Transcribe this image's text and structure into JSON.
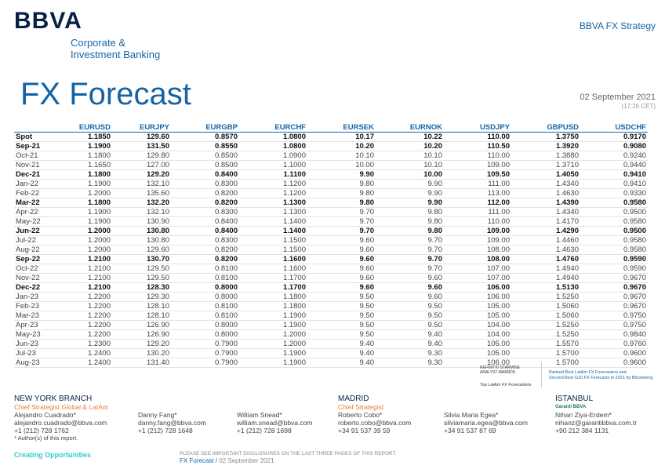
{
  "header": {
    "logo": "BBVA",
    "tagline": [
      "Corporate &",
      "Investment Banking"
    ],
    "section": "BBVA FX Strategy"
  },
  "title": "FX Forecast",
  "date": "02 September 2021",
  "time": "(17:26 CET)",
  "table": {
    "header": [
      "",
      "EURUSD",
      "EURJPY",
      "EURGBP",
      "EURCHF",
      "EURSEK",
      "EURNOK",
      "USDJPY",
      "GBPUSD",
      "USDCHF"
    ],
    "rows": [
      [
        "Spot",
        "1.1850",
        "129.60",
        "0.8570",
        "1.0800",
        "10.17",
        "10.22",
        "110.00",
        "1.3750",
        "0.9170"
      ],
      [
        "Sep-21",
        "1.1900",
        "131.50",
        "0.8550",
        "1.0800",
        "10.20",
        "10.20",
        "110.50",
        "1.3920",
        "0.9080"
      ],
      [
        "Oct-21",
        "1.1800",
        "129.80",
        "0.8500",
        "1.0900",
        "10.10",
        "10.10",
        "110.00",
        "1.3880",
        "0.9240"
      ],
      [
        "Nov-21",
        "1.1650",
        "127.00",
        "0.8500",
        "1.1000",
        "10.00",
        "10.10",
        "109.00",
        "1.3710",
        "0.9440"
      ],
      [
        "Dec-21",
        "1.1800",
        "129.20",
        "0.8400",
        "1.1100",
        "9.90",
        "10.00",
        "109.50",
        "1.4050",
        "0.9410"
      ],
      [
        "Jan-22",
        "1.1900",
        "132.10",
        "0.8300",
        "1.1200",
        "9.80",
        "9.90",
        "111.00",
        "1.4340",
        "0.9410"
      ],
      [
        "Feb-22",
        "1.2000",
        "135.60",
        "0.8200",
        "1.1200",
        "9.80",
        "9.90",
        "113.00",
        "1.4630",
        "0.9330"
      ],
      [
        "Mar-22",
        "1.1800",
        "132.20",
        "0.8200",
        "1.1300",
        "9.80",
        "9.90",
        "112.00",
        "1.4390",
        "0.9580"
      ],
      [
        "Apr-22",
        "1.1900",
        "132.10",
        "0.8300",
        "1.1300",
        "9.70",
        "9.80",
        "111.00",
        "1.4340",
        "0.9500"
      ],
      [
        "May-22",
        "1.1900",
        "130.90",
        "0.8400",
        "1.1400",
        "9.70",
        "9.80",
        "110.00",
        "1.4170",
        "0.9580"
      ],
      [
        "Jun-22",
        "1.2000",
        "130.80",
        "0.8400",
        "1.1400",
        "9.70",
        "9.80",
        "109.00",
        "1.4290",
        "0.9500"
      ],
      [
        "Jul-22",
        "1.2000",
        "130.80",
        "0.8300",
        "1.1500",
        "9.60",
        "9.70",
        "109.00",
        "1.4460",
        "0.9580"
      ],
      [
        "Aug-22",
        "1.2000",
        "129.60",
        "0.8200",
        "1.1500",
        "9.60",
        "9.70",
        "108.00",
        "1.4630",
        "0.9580"
      ],
      [
        "Sep-22",
        "1.2100",
        "130.70",
        "0.8200",
        "1.1600",
        "9.60",
        "9.70",
        "108.00",
        "1.4760",
        "0.9590"
      ],
      [
        "Oct-22",
        "1.2100",
        "129.50",
        "0.8100",
        "1.1600",
        "9.60",
        "9.70",
        "107.00",
        "1.4940",
        "0.9590"
      ],
      [
        "Nov-22",
        "1.2100",
        "129.50",
        "0.8100",
        "1.1700",
        "9.60",
        "9.60",
        "107.00",
        "1.4940",
        "0.9670"
      ],
      [
        "Dec-22",
        "1.2100",
        "128.30",
        "0.8000",
        "1.1700",
        "9.60",
        "9.60",
        "106.00",
        "1.5130",
        "0.9670"
      ],
      [
        "Jan-23",
        "1.2200",
        "129.30",
        "0.8000",
        "1.1800",
        "9.50",
        "9.60",
        "106.00",
        "1.5250",
        "0.9670"
      ],
      [
        "Feb-23",
        "1.2200",
        "128.10",
        "0.8100",
        "1.1800",
        "9.50",
        "9.50",
        "105.00",
        "1.5060",
        "0.9670"
      ],
      [
        "Mar-23",
        "1.2200",
        "128.10",
        "0.8100",
        "1.1900",
        "9.50",
        "9.50",
        "105.00",
        "1.5060",
        "0.9750"
      ],
      [
        "Apr-23",
        "1.2200",
        "126.90",
        "0.8000",
        "1.1900",
        "9.50",
        "9.50",
        "104.00",
        "1.5250",
        "0.9750"
      ],
      [
        "May-23",
        "1.2200",
        "126.90",
        "0.8000",
        "1.2000",
        "9.50",
        "9.40",
        "104.00",
        "1.5250",
        "0.9840"
      ],
      [
        "Jun-23",
        "1.2300",
        "129.20",
        "0.7900",
        "1.2000",
        "9.40",
        "9.40",
        "105.00",
        "1.5570",
        "0.9760"
      ],
      [
        "Jul-23",
        "1.2400",
        "130.20",
        "0.7900",
        "1.1900",
        "9.40",
        "9.30",
        "105.00",
        "1.5700",
        "0.9600"
      ],
      [
        "Aug-23",
        "1.2400",
        "131.40",
        "0.7900",
        "1.1900",
        "9.40",
        "9.30",
        "106.00",
        "1.5700",
        "0.9600"
      ]
    ]
  },
  "awards": {
    "badge": "REFINITIV STARMINE ANALYST AWARDS",
    "badge_caption": "Top LatAm FX Forecasters",
    "text": [
      "Ranked Best LatAm FX Forecasters and",
      "Second Best G10 FX Forecasts in 2021 by Bloomberg"
    ]
  },
  "contacts": {
    "new_york": {
      "office": "NEW YORK BRANCH",
      "role": "Chief Strategist Global & LatAm",
      "name": "Alejandro Cuadrado*",
      "email": "alejandro.cuadrado@bbva.com",
      "phone": "+1 (212) 728 1762",
      "note": "* Author(s) of this report."
    },
    "fang": {
      "name": "Danny Fang*",
      "email": "danny.fang@bbva.com",
      "phone": "+1 (212) 728 1648"
    },
    "snead": {
      "name": "William Snead*",
      "email": "william.snead@bbva.com",
      "phone": "+1 (212) 728 1698"
    },
    "madrid": {
      "office": "MADRID",
      "role": "Chief Strategist",
      "name": "Roberto Cobo*",
      "email": "roberto.cobo@bbva.com",
      "phone": "+34 91 537 39 59"
    },
    "egea": {
      "name": "Silvia Maria Egea*",
      "email": "silviamaria.egea@bbva.com",
      "phone": "+34 91 537 87 69"
    },
    "istanbul": {
      "office": "ISTANBUL",
      "brand": "Garanti BBVA",
      "name": "Nihan Ziya-Erdem*",
      "email": "nihanz@garantibbva.com.tr",
      "phone": "+90 212 384 1131"
    }
  },
  "footer": {
    "slogan": "Creating Opportunities",
    "disclosure": "PLEASE SEE IMPORTANT DISCLOSURES ON THE LAST THREE PAGES OF THIS REPORT.",
    "doc": "FX Forecast /",
    "date": "02 September 2021"
  }
}
